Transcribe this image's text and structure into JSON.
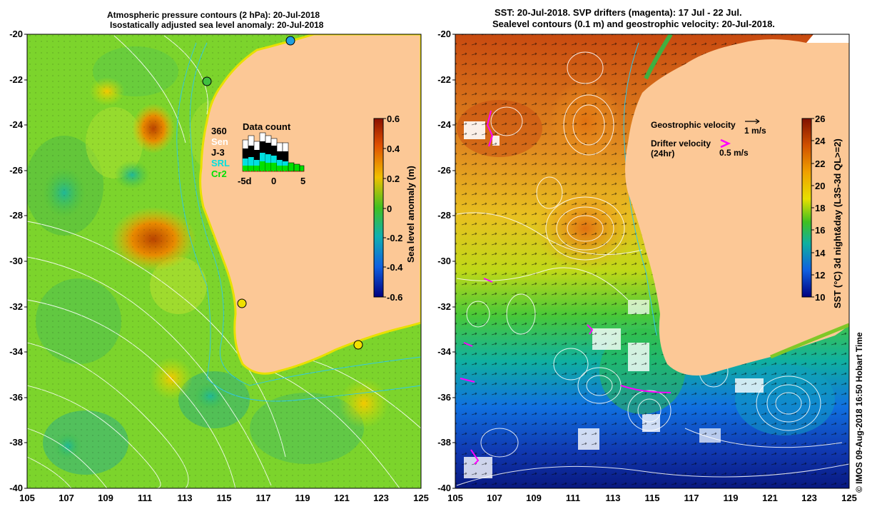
{
  "left_panel": {
    "title_line1": "Atmospheric pressure contours (2 hPa): 20-Jul-2018",
    "title_line2": "Isostatically adjusted sea level anomaly: 20-Jul-2018",
    "y_ticks": [
      "-20",
      "-22",
      "-24",
      "-26",
      "-28",
      "-30",
      "-32",
      "-34",
      "-36",
      "-38",
      "-40"
    ],
    "x_ticks": [
      "105",
      "107",
      "109",
      "111",
      "113",
      "115",
      "117",
      "119",
      "121",
      "123",
      "125"
    ],
    "colorbar": {
      "label": "Sea level anomaly (m)",
      "ticks": [
        "0.6",
        "0.4",
        "0.2",
        "0",
        "-0.2",
        "-0.4",
        "-0.6"
      ]
    },
    "data_count": {
      "title": "Data count",
      "legend": [
        "360",
        "Sen",
        "J-3",
        "SRL",
        "Cr2"
      ],
      "legend_colors": [
        "#000000",
        "#ffffff",
        "#000000",
        "#00e0e0",
        "#00e000"
      ],
      "x_ticks": [
        "-5d",
        "0",
        "5"
      ]
    }
  },
  "right_panel": {
    "title_line1": "SST: 20-Jul-2018. SVP drifters (magenta): 17 Jul - 22 Jul.",
    "title_line2": "Sealevel contours (0.1 m) and geostrophic velocity: 20-Jul-2018.",
    "y_ticks": [
      "-20",
      "-22",
      "-24",
      "-26",
      "-28",
      "-30",
      "-32",
      "-34",
      "-36",
      "-38",
      "-40"
    ],
    "x_ticks": [
      "105",
      "107",
      "109",
      "111",
      "113",
      "115",
      "117",
      "119",
      "121",
      "123",
      "125"
    ],
    "legend": {
      "geostrophic_label": "Geostrophic velocity",
      "geostrophic_unit": "1 m/s",
      "drifter_label_1": "Drifter velocity",
      "drifter_label_2": "(24hr)",
      "drifter_unit": "0.5 m/s"
    },
    "colorbar": {
      "label": "SST (°C) 3d night&day (L3S-3d QL>=2)",
      "ticks": [
        "26",
        "24",
        "22",
        "20",
        "18",
        "16",
        "14",
        "12",
        "10"
      ]
    }
  },
  "footer": "© IMOS 09-Aug-2018 16:50 Hobart Time",
  "colors": {
    "land": "#fcc896",
    "sla_positive": "#e08000",
    "sla_zero": "#78d428",
    "sst_warm": "#d87010",
    "sst_cold": "#1040c0",
    "drifter": "#ff00ff"
  }
}
